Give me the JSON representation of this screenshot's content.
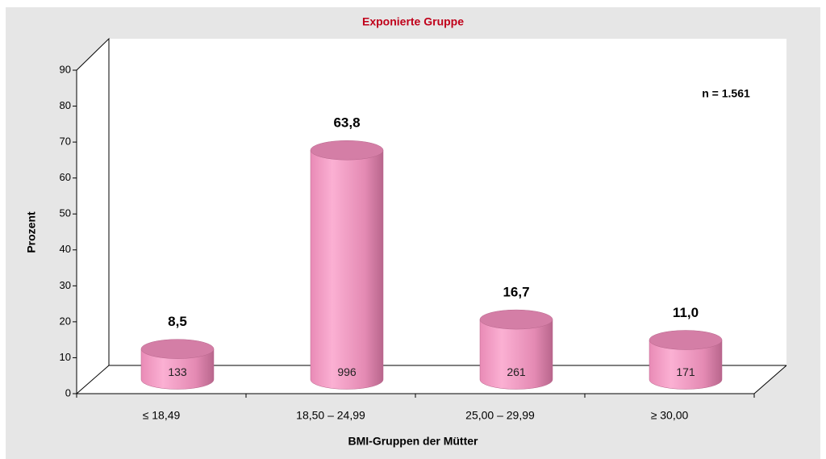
{
  "chart_data": {
    "type": "bar3d",
    "title": "Exponierte Gruppe",
    "x_label": "BMI-Gruppen der Mütter",
    "y_label": "Prozent",
    "annotation": "n = 1.561",
    "categories": [
      "≤ 18,49",
      "18,50 – 24,99",
      "25,00 – 29,99",
      "≥ 30,00"
    ],
    "values": [
      8.5,
      63.8,
      16.7,
      11.0
    ],
    "value_labels": [
      "8,5",
      "63,8",
      "16,7",
      "11,0"
    ],
    "counts": [
      133,
      996,
      261,
      171
    ],
    "color": "#f29ac4",
    "ylim": [
      0,
      90
    ],
    "yticks": [
      0,
      10,
      20,
      30,
      40,
      50,
      60,
      70,
      80,
      90
    ]
  }
}
